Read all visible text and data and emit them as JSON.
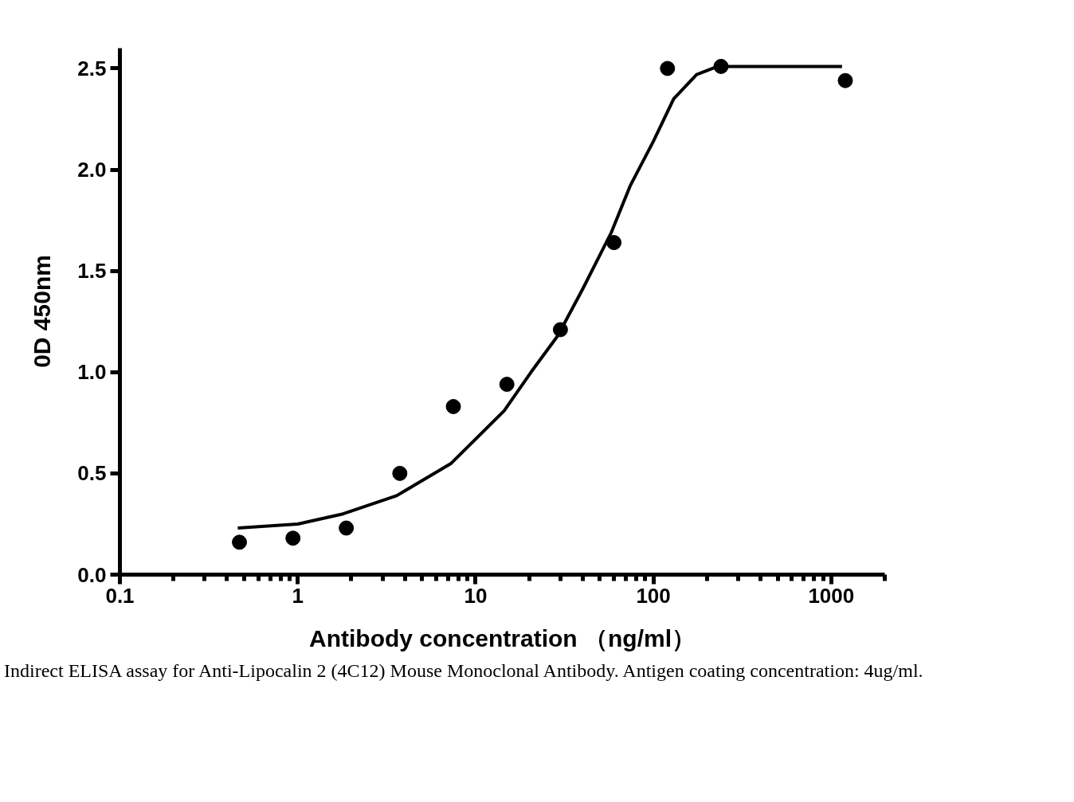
{
  "chart_data": {
    "type": "scatter",
    "xlabel": "Antibody concentration （ng/ml）",
    "ylabel": "0D 450nm",
    "log": "x",
    "grid": false,
    "xlim": [
      0.1,
      2000
    ],
    "xticks": [
      0.1,
      1,
      10,
      100,
      1000
    ],
    "ylim": [
      0,
      2.6
    ],
    "yticks": [
      {
        "value": 0,
        "label": "0.0"
      },
      {
        "value": 0.5,
        "label": "0.5"
      },
      {
        "value": 1,
        "label": "1.0"
      },
      {
        "value": 1.5,
        "label": "1.5"
      },
      {
        "value": 2,
        "label": "2.0"
      },
      {
        "value": 2.5,
        "label": "2.5"
      }
    ],
    "series": [
      {
        "type": "scatter",
        "marker": "circle",
        "color": "#000000",
        "x": [
          0.47,
          0.94,
          1.875,
          3.75,
          7.5,
          15,
          30,
          60,
          120,
          240,
          1200
        ],
        "values": [
          0.16,
          0.18,
          0.23,
          0.5,
          0.83,
          0.94,
          1.21,
          1.64,
          2.5,
          2.51,
          2.44
        ]
      },
      {
        "type": "line",
        "marker": "none",
        "line_style": "solid",
        "color": "#000000",
        "x": [
          0.46,
          1,
          1.8,
          3.6,
          7.3,
          14.5,
          20.5,
          29,
          40,
          58,
          74,
          100,
          130,
          175,
          230,
          375,
          1150
        ],
        "values": [
          0.23,
          0.25,
          0.3,
          0.39,
          0.55,
          0.81,
          1.0,
          1.18,
          1.41,
          1.69,
          1.92,
          2.14,
          2.35,
          2.47,
          2.51,
          2.51,
          2.51
        ]
      }
    ],
    "annotations": [
      "Indirect ELISA assay for Anti-Lipocalin 2 (4C12) Mouse Monoclonal Antibody. Antigen coating concentration: 4ug/ml."
    ]
  }
}
